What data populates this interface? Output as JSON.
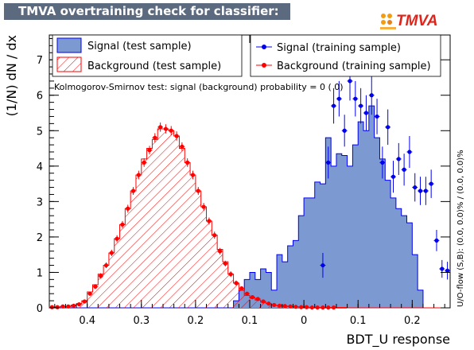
{
  "title": "TMVA overtraining check for classifier: BDT_U",
  "logo_text": "TMVA",
  "overflow_note": "U/O-flow (S,B): (0.0, 0.0)% / (0.0, 0.0)%",
  "ks_text": "Kolmogorov-Smirnov test: signal (background) probability =     0 (    0)",
  "legend": {
    "signal_test": "Signal (test sample)",
    "background_test": "Background (test sample)",
    "signal_train": "Signal (training sample)",
    "background_train": "Background (training sample)"
  },
  "colors": {
    "signal_fill": "#7d99d1",
    "signal_line": "#0000ee",
    "background_line": "#ff0000",
    "title_bg": "#5c6a80"
  },
  "chart_data": {
    "type": "bar",
    "xlabel": "BDT_U response",
    "ylabel": "(1/N) dN / dx",
    "xlim": [
      -0.47,
      0.27
    ],
    "ylim": [
      0,
      7.7
    ],
    "xticks": [
      -0.4,
      -0.3,
      -0.2,
      -0.1,
      0,
      0.1,
      0.2
    ],
    "xtick_labels": [
      "0.4",
      "0.3",
      "0.2",
      "0.1",
      "0",
      "0.1",
      "0.2"
    ],
    "yticks": [
      0,
      1,
      2,
      3,
      4,
      5,
      6,
      7
    ],
    "bin_edges_start": -0.47,
    "bin_width": 0.01,
    "series": [
      {
        "name": "Signal (test sample)",
        "kind": "filled-histogram",
        "values": [
          0,
          0,
          0,
          0,
          0,
          0,
          0,
          0,
          0,
          0,
          0,
          0,
          0,
          0,
          0,
          0,
          0,
          0,
          0,
          0,
          0,
          0,
          0,
          0,
          0,
          0,
          0,
          0,
          0,
          0,
          0,
          0,
          0,
          0,
          0.2,
          0.5,
          0.8,
          1.0,
          0.8,
          1.1,
          1.0,
          0.5,
          1.5,
          1.3,
          1.75,
          1.9,
          2.6,
          3.1,
          3.1,
          3.55,
          3.5,
          4.8,
          4.0,
          4.35,
          4.3,
          4.0,
          4.6,
          5.25,
          5.0,
          5.7,
          4.8,
          4.2,
          3.6,
          3.1,
          2.8,
          2.6,
          2.4,
          1.5,
          0.5,
          0.0,
          0.0,
          0.0,
          0.0,
          0.0
        ]
      },
      {
        "name": "Background (test sample)",
        "kind": "hatched-histogram",
        "values": [
          0.02,
          0.02,
          0.04,
          0.04,
          0.08,
          0.12,
          0.2,
          0.45,
          0.65,
          0.95,
          1.2,
          1.55,
          1.95,
          2.35,
          2.8,
          3.3,
          3.75,
          4.2,
          4.5,
          4.75,
          5.05,
          5.05,
          5.0,
          4.85,
          4.5,
          4.1,
          3.75,
          3.3,
          2.85,
          2.45,
          2.05,
          1.65,
          1.3,
          0.95,
          0.7,
          0.5,
          0.35,
          0.28,
          0.22,
          0.16,
          0.12,
          0.08,
          0.06,
          0.05,
          0.04,
          0.03,
          0.02,
          0.02,
          0.01,
          0.01,
          0.01,
          0.01,
          0.01,
          0.01,
          0.01,
          0,
          0,
          0,
          0,
          0,
          0,
          0,
          0,
          0,
          0,
          0,
          0,
          0,
          0,
          0,
          0,
          0,
          0,
          0
        ]
      },
      {
        "name": "Signal (training sample)",
        "kind": "points",
        "x": [
          0.025,
          0.035,
          0.045,
          0.055,
          0.065,
          0.075,
          0.085,
          0.095,
          0.105,
          0.115,
          0.125,
          0.135,
          0.145,
          0.155,
          0.165,
          0.175,
          0.185,
          0.195,
          0.205,
          0.215,
          0.225,
          0.235,
          0.245,
          0.255,
          0.265
        ],
        "y": [
          0.0,
          1.2,
          4.1,
          5.7,
          5.9,
          5.0,
          6.4,
          5.9,
          5.7,
          5.5,
          6.0,
          5.4,
          4.1,
          5.1,
          3.7,
          4.2,
          3.9,
          4.4,
          3.4,
          3.3,
          3.3,
          3.5,
          1.9,
          1.1,
          1.05
        ],
        "yerr": [
          0,
          0.35,
          0.45,
          0.5,
          0.5,
          0.45,
          0.55,
          0.5,
          0.5,
          0.5,
          0.55,
          0.5,
          0.45,
          0.5,
          0.45,
          0.45,
          0.45,
          0.45,
          0.4,
          0.4,
          0.4,
          0.4,
          0.3,
          0.25,
          0.25
        ]
      },
      {
        "name": "Background (training sample)",
        "kind": "points",
        "x": [
          -0.465,
          -0.455,
          -0.445,
          -0.435,
          -0.425,
          -0.415,
          -0.405,
          -0.395,
          -0.385,
          -0.375,
          -0.365,
          -0.355,
          -0.345,
          -0.335,
          -0.325,
          -0.315,
          -0.305,
          -0.295,
          -0.285,
          -0.275,
          -0.265,
          -0.255,
          -0.245,
          -0.235,
          -0.225,
          -0.215,
          -0.205,
          -0.195,
          -0.185,
          -0.175,
          -0.165,
          -0.155,
          -0.145,
          -0.135,
          -0.125,
          -0.115,
          -0.105,
          -0.095,
          -0.085,
          -0.075,
          -0.065,
          -0.055,
          -0.045,
          -0.035,
          -0.025,
          -0.015,
          -0.005,
          0.005,
          0.015,
          0.025,
          0.035,
          0.045,
          0.055
        ],
        "y": [
          0.02,
          0.02,
          0.04,
          0.04,
          0.06,
          0.1,
          0.18,
          0.4,
          0.6,
          0.9,
          1.2,
          1.55,
          1.95,
          2.35,
          2.8,
          3.3,
          3.75,
          4.1,
          4.45,
          4.8,
          5.1,
          5.05,
          5.0,
          4.85,
          4.55,
          4.1,
          3.75,
          3.3,
          2.85,
          2.45,
          2.05,
          1.6,
          1.25,
          0.95,
          0.7,
          0.55,
          0.4,
          0.3,
          0.25,
          0.18,
          0.12,
          0.08,
          0.06,
          0.05,
          0.04,
          0.03,
          0.02,
          0.02,
          0.01,
          0.01,
          0.01,
          0.01,
          0.01
        ],
        "yerr": [
          0.01,
          0.01,
          0.02,
          0.02,
          0.03,
          0.04,
          0.05,
          0.06,
          0.07,
          0.08,
          0.08,
          0.09,
          0.1,
          0.1,
          0.11,
          0.11,
          0.12,
          0.12,
          0.12,
          0.13,
          0.13,
          0.13,
          0.13,
          0.13,
          0.12,
          0.12,
          0.12,
          0.11,
          0.11,
          0.1,
          0.1,
          0.09,
          0.08,
          0.08,
          0.07,
          0.06,
          0.05,
          0.05,
          0.04,
          0.04,
          0.03,
          0.03,
          0.02,
          0.02,
          0.02,
          0.02,
          0.01,
          0.01,
          0.01,
          0.01,
          0.01,
          0.01,
          0.01
        ]
      }
    ]
  }
}
